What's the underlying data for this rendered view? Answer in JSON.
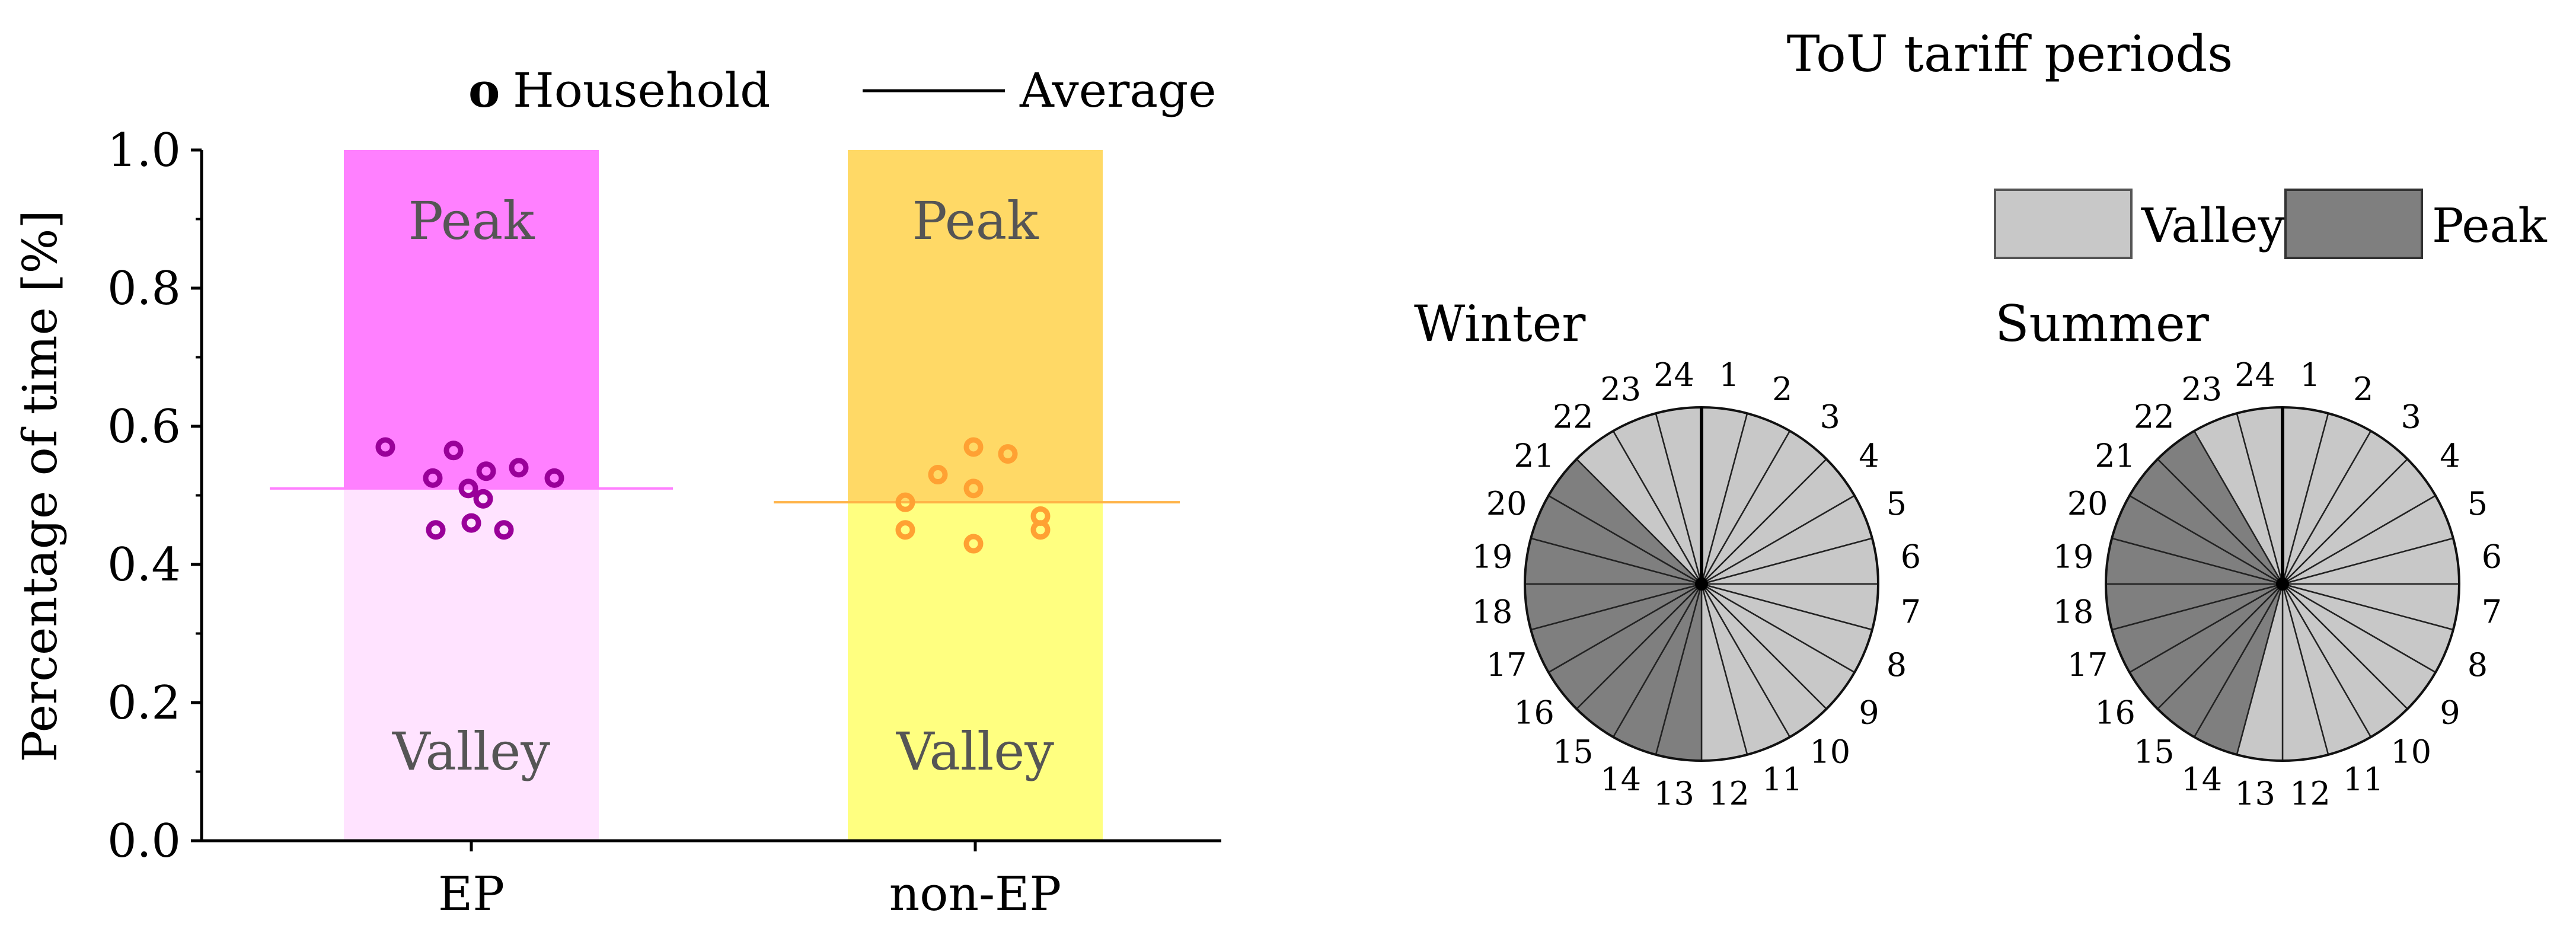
{
  "chart_data": [
    {
      "type": "bar",
      "ylabel": "Percentage of time [%]",
      "ylim": [
        0,
        1.0
      ],
      "yticks": [
        "0.0",
        "0.2",
        "0.4",
        "0.6",
        "0.8",
        "1.0"
      ],
      "categories": [
        "EP",
        "non-EP"
      ],
      "series": [
        {
          "name": "Valley",
          "values": [
            0.51,
            0.49
          ]
        },
        {
          "name": "Peak",
          "values": [
            0.49,
            0.51
          ]
        }
      ],
      "legend": {
        "household_marker": "o",
        "household_label": "Household",
        "average_label": "Average",
        "placement": "top"
      },
      "region_labels": {
        "peak": "Peak",
        "valley": "Valley"
      },
      "colors": {
        "EP": {
          "peak": "#ff80ff",
          "valley": "#ffe3ff",
          "marker": "#990099",
          "average": "#ff80ff"
        },
        "non-EP": {
          "peak": "#ffd966",
          "valley": "#ffff80",
          "marker": "#ffa133",
          "average": "#ffb347"
        }
      },
      "households": [
        {
          "group": "EP",
          "values": [
            0.57,
            0.525,
            0.565,
            0.51,
            0.535,
            0.495,
            0.54,
            0.525,
            0.45,
            0.46,
            0.45
          ]
        },
        {
          "group": "non-EP",
          "values": [
            0.49,
            0.45,
            0.53,
            0.57,
            0.51,
            0.56,
            0.43,
            0.47,
            0.45
          ]
        }
      ],
      "averages": [
        0.51,
        0.49
      ]
    },
    {
      "type": "pie",
      "title": "ToU tariff periods",
      "legend": [
        {
          "name": "Valley",
          "color": "#c8c8c8"
        },
        {
          "name": "Peak",
          "color": "#7f7f7f"
        }
      ],
      "hours": [
        "1",
        "2",
        "3",
        "4",
        "5",
        "6",
        "7",
        "8",
        "9",
        "10",
        "11",
        "12",
        "13",
        "14",
        "15",
        "16",
        "17",
        "18",
        "19",
        "20",
        "21",
        "22",
        "23",
        "24"
      ],
      "seasons": [
        {
          "name": "Winter",
          "peak_hours": [
            13,
            14,
            15,
            16,
            17,
            18,
            19,
            20,
            21
          ]
        },
        {
          "name": "Summer",
          "peak_hours": [
            14,
            15,
            16,
            17,
            18,
            19,
            20,
            21,
            22
          ]
        }
      ]
    }
  ]
}
